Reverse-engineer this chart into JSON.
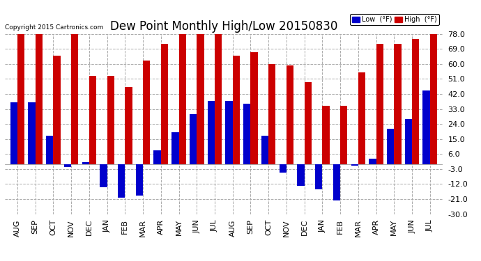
{
  "title": "Dew Point Monthly High/Low 20150830",
  "copyright": "Copyright 2015 Cartronics.com",
  "categories": [
    "AUG",
    "SEP",
    "OCT",
    "NOV",
    "DEC",
    "JAN",
    "FEB",
    "MAR",
    "APR",
    "MAY",
    "JUN",
    "JUL",
    "AUG",
    "SEP",
    "OCT",
    "NOV",
    "DEC",
    "JAN",
    "FEB",
    "MAR",
    "APR",
    "MAY",
    "JUN",
    "JUL"
  ],
  "high": [
    78,
    78,
    65,
    78,
    53,
    53,
    46,
    62,
    72,
    78,
    78,
    78,
    65,
    67,
    60,
    59,
    49,
    35,
    35,
    55,
    72,
    72,
    75,
    78
  ],
  "low": [
    37,
    37,
    17,
    -2,
    1,
    -14,
    -20,
    -19,
    8,
    19,
    30,
    38,
    38,
    36,
    17,
    -5,
    -13,
    -15,
    -22,
    -1,
    3,
    21,
    27,
    44
  ],
  "high_color": "#cc0000",
  "low_color": "#0000cc",
  "background_color": "#ffffff",
  "grid_color": "#aaaaaa",
  "ylim": [
    -30,
    78
  ],
  "yticks": [
    -30.0,
    -21.0,
    -12.0,
    -3.0,
    6.0,
    15.0,
    24.0,
    33.0,
    42.0,
    51.0,
    60.0,
    69.0,
    78.0
  ],
  "bar_width": 0.4,
  "title_fontsize": 12,
  "tick_fontsize": 8,
  "legend_low_label": "Low  (°F)",
  "legend_high_label": "High  (°F)"
}
